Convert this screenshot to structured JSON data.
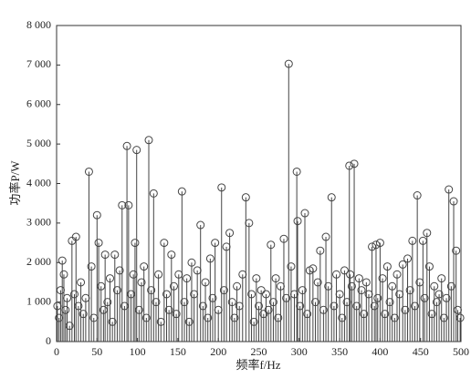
{
  "chart_data": {
    "type": "stem",
    "xlabel": "频率f/Hz",
    "ylabel": "功率P/W",
    "xlim": [
      0,
      500
    ],
    "xticks": [
      0,
      50,
      100,
      150,
      200,
      250,
      300,
      350,
      400,
      450,
      500
    ],
    "ylim": [
      0,
      8000
    ],
    "yticks": [
      0,
      {
        "value": 1000,
        "label": "1 000"
      },
      {
        "value": 2000,
        "label": "2 000"
      },
      {
        "value": 3000,
        "label": "3 000"
      },
      {
        "value": 4000,
        "label": "4 000"
      },
      {
        "value": 5000,
        "label": "5 000"
      },
      {
        "value": 6000,
        "label": "6 000"
      },
      {
        "value": 7000,
        "label": "7 000"
      },
      {
        "value": 8000,
        "label": "8 000"
      }
    ],
    "color": "#444444",
    "x": [
      1,
      3,
      5,
      7,
      9,
      11,
      13,
      16,
      19,
      22,
      24,
      27,
      30,
      33,
      36,
      40,
      43,
      46,
      50,
      52,
      55,
      58,
      60,
      63,
      66,
      69,
      72,
      75,
      78,
      81,
      84,
      87,
      89,
      92,
      95,
      97,
      99,
      102,
      105,
      108,
      111,
      114,
      117,
      120,
      123,
      126,
      129,
      133,
      136,
      139,
      142,
      145,
      148,
      151,
      155,
      158,
      161,
      164,
      167,
      170,
      174,
      178,
      181,
      184,
      187,
      190,
      193,
      196,
      200,
      204,
      207,
      210,
      214,
      217,
      220,
      223,
      226,
      230,
      234,
      238,
      241,
      244,
      247,
      250,
      253,
      256,
      259,
      262,
      265,
      268,
      271,
      274,
      277,
      281,
      284,
      287,
      290,
      294,
      297,
      298,
      301,
      304,
      307,
      310,
      313,
      317,
      320,
      323,
      326,
      330,
      333,
      336,
      340,
      343,
      346,
      350,
      353,
      356,
      359,
      362,
      363,
      365,
      368,
      371,
      374,
      377,
      380,
      383,
      386,
      390,
      393,
      395,
      397,
      400,
      403,
      406,
      409,
      412,
      415,
      418,
      421,
      424,
      428,
      431,
      434,
      437,
      440,
      443,
      446,
      449,
      453,
      455,
      458,
      461,
      464,
      467,
      470,
      473,
      476,
      479,
      482,
      485,
      488,
      491,
      494,
      496,
      499
    ],
    "values": [
      900,
      600,
      1300,
      2050,
      1700,
      800,
      1100,
      400,
      2550,
      1200,
      2650,
      900,
      1500,
      700,
      1100,
      4300,
      1900,
      600,
      3200,
      2500,
      1400,
      800,
      2200,
      1000,
      1600,
      500,
      2200,
      1300,
      1800,
      3450,
      900,
      4950,
      3450,
      1200,
      1700,
      2500,
      4850,
      800,
      1500,
      1900,
      600,
      5100,
      1300,
      3750,
      1000,
      1700,
      500,
      2500,
      1200,
      800,
      2200,
      1400,
      700,
      1700,
      3800,
      1000,
      1600,
      500,
      2000,
      1200,
      1800,
      2950,
      900,
      1500,
      600,
      2100,
      1100,
      2500,
      800,
      3900,
      1300,
      2400,
      2750,
      1000,
      600,
      1400,
      900,
      1700,
      3650,
      3000,
      1200,
      500,
      1600,
      900,
      1300,
      700,
      1200,
      800,
      2450,
      1000,
      1600,
      600,
      1400,
      2600,
      1100,
      7030,
      1900,
      1200,
      4300,
      3050,
      900,
      1300,
      3250,
      700,
      1800,
      1850,
      1000,
      1500,
      2300,
      800,
      2650,
      1400,
      3650,
      900,
      1700,
      1200,
      600,
      1800,
      1000,
      4450,
      1700,
      1400,
      4500,
      900,
      1600,
      1300,
      700,
      1500,
      1200,
      2400,
      900,
      2450,
      1100,
      2500,
      1600,
      700,
      1900,
      1000,
      1400,
      600,
      1700,
      1200,
      1950,
      800,
      2100,
      1300,
      2550,
      900,
      3700,
      1500,
      2550,
      1100,
      2750,
      1900,
      700,
      1400,
      1000,
      1200,
      1600,
      600,
      1100,
      3850,
      1400,
      3550,
      2300,
      800,
      600
    ]
  }
}
